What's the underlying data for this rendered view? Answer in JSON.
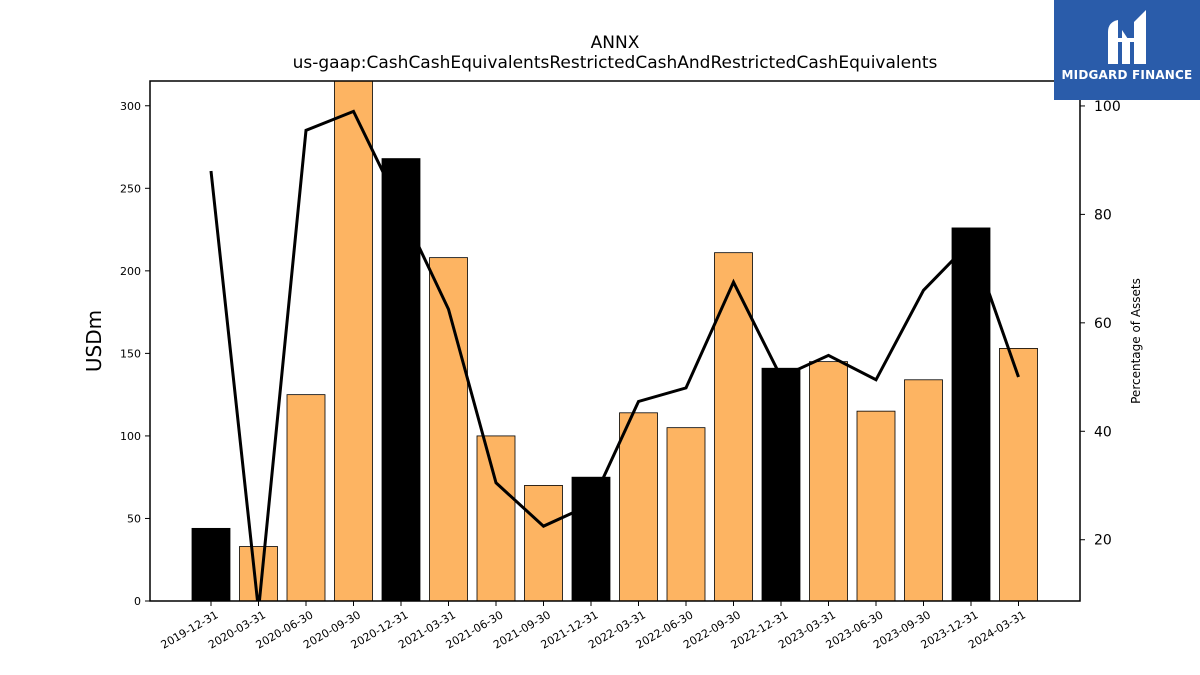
{
  "chart_data": {
    "type": "bar",
    "title": "ANNX",
    "subtitle": "us-gaap:CashCashEquivalentsRestrictedCashAndRestrictedCashEquivalents",
    "ylabel": "USDm",
    "y2label": "Percentage of Assets",
    "categories": [
      "2019-12-31",
      "2020-03-31",
      "2020-06-30",
      "2020-09-30",
      "2020-12-31",
      "2021-03-31",
      "2021-06-30",
      "2021-09-30",
      "2021-12-31",
      "2022-03-31",
      "2022-06-30",
      "2022-09-30",
      "2022-12-31",
      "2023-03-31",
      "2023-06-30",
      "2023-09-30",
      "2023-12-31",
      "2024-03-31"
    ],
    "series": [
      {
        "values": [
          44,
          33,
          125,
          320,
          268,
          208,
          100,
          70,
          75,
          114,
          105,
          211,
          141,
          145,
          115,
          134,
          226,
          153
        ],
        "colors": [
          "#000000",
          "#fdb462",
          "#fdb462",
          "#fdb462",
          "#000000",
          "#fdb462",
          "#fdb462",
          "#fdb462",
          "#000000",
          "#fdb462",
          "#fdb462",
          "#fdb462",
          "#000000",
          "#fdb462",
          "#fdb462",
          "#fdb462",
          "#000000",
          "#fdb462"
        ]
      },
      {
        "type": "line",
        "axis": "right",
        "values": [
          88,
          7,
          95.5,
          99,
          81,
          62.5,
          30.5,
          22.5,
          26.5,
          45.5,
          48,
          67.5,
          50,
          54,
          49.5,
          66,
          75,
          50
        ]
      }
    ],
    "ylim": [
      0,
      315
    ],
    "yticks": [
      0,
      50,
      100,
      150,
      200,
      250,
      300
    ],
    "y2lim": [
      8.7,
      104.6
    ],
    "y2ticks": [
      20,
      40,
      60,
      80,
      100
    ],
    "grid": false,
    "colors": {
      "bar_highlight": "#000000",
      "bar_default": "#fdb462",
      "line": "#000000"
    }
  },
  "logo": {
    "text": "MIDGARD FINANCE",
    "color": "#2a5caa"
  }
}
